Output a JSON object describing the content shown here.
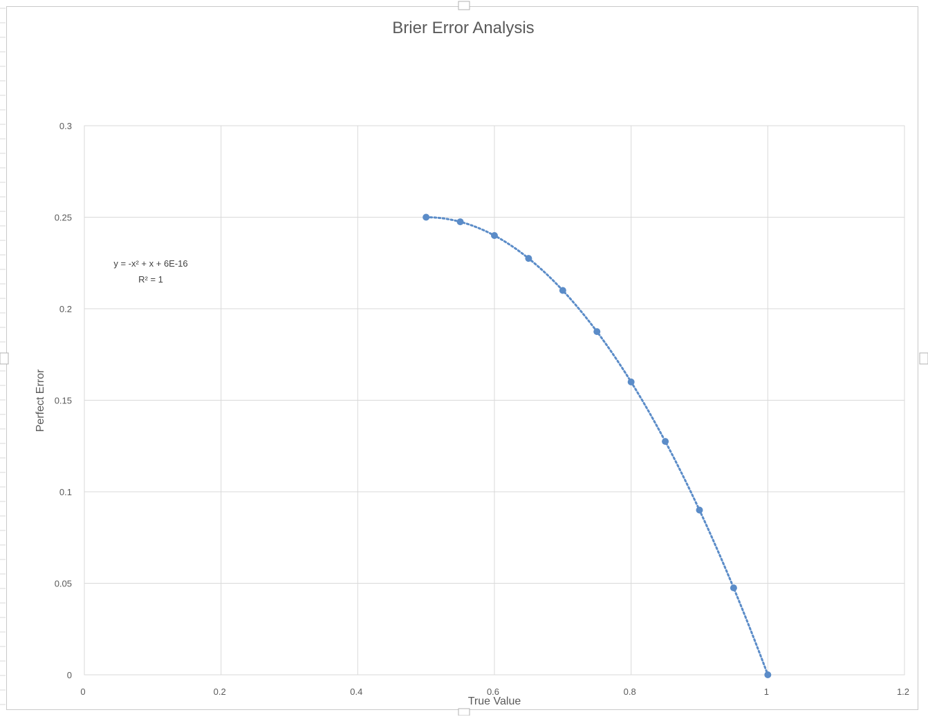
{
  "chart_data": {
    "type": "scatter",
    "title": "Brier Error Analysis",
    "xlabel": "True Value",
    "ylabel": "Perfect Error",
    "xlim": [
      0,
      1.2
    ],
    "ylim": [
      0,
      0.3
    ],
    "x_ticks": [
      "0",
      "0.2",
      "0.4",
      "0.6",
      "0.8",
      "1",
      "1.2"
    ],
    "y_ticks": [
      "0",
      "0.05",
      "0.1",
      "0.15",
      "0.2",
      "0.25",
      "0.3"
    ],
    "grid": true,
    "series": [
      {
        "x": [
          0.5,
          0.55,
          0.6,
          0.65,
          0.7,
          0.75,
          0.8,
          0.85,
          0.9,
          0.95,
          1.0
        ],
        "y": [
          0.25,
          0.2475,
          0.24,
          0.2275,
          0.21,
          0.1875,
          0.16,
          0.1275,
          0.09,
          0.0475,
          0.0
        ],
        "color": "#5b8cc8"
      }
    ],
    "trendline": {
      "type": "polynomial",
      "coefficients": [
        -1,
        1,
        6e-16
      ],
      "style": "dotted",
      "color": "#5b8cc8",
      "equation_label": "y = -x² + x + 6E-16",
      "r2_label": "R² = 1"
    }
  }
}
